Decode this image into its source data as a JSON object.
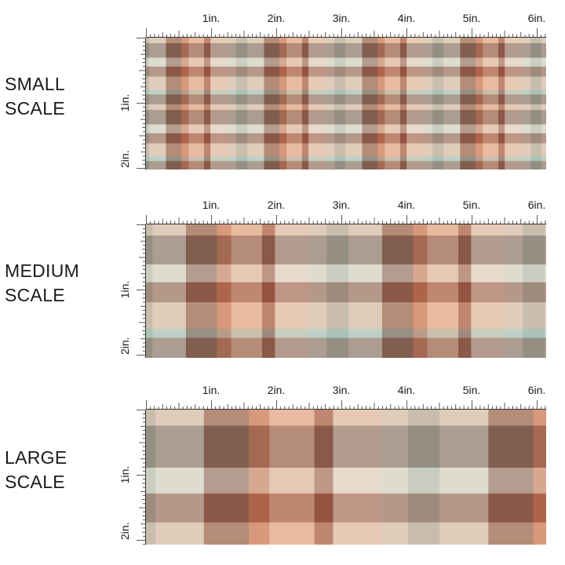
{
  "sections": [
    {
      "label_line1": "SMALL",
      "label_line2": "SCALE",
      "tile": "small"
    },
    {
      "label_line1": "MEDIUM",
      "label_line2": "SCALE",
      "tile": "medium"
    },
    {
      "label_line1": "LARGE",
      "label_line2": "SCALE",
      "tile": "large"
    }
  ],
  "ruler": {
    "h_labels": [
      "1in.",
      "2in.",
      "3in.",
      "4in.",
      "5in.",
      "6in."
    ],
    "v_labels": [
      "1in.",
      "2in."
    ]
  },
  "palette": {
    "rust": "#8f4a36",
    "brown": "#7a5446",
    "terracotta": "#c56e4c",
    "peach": "#e7b79b",
    "cream": "#e6d8c8",
    "sage": "#a6bfb4",
    "mint": "#d3ddd3",
    "tan": "#c89f86"
  }
}
